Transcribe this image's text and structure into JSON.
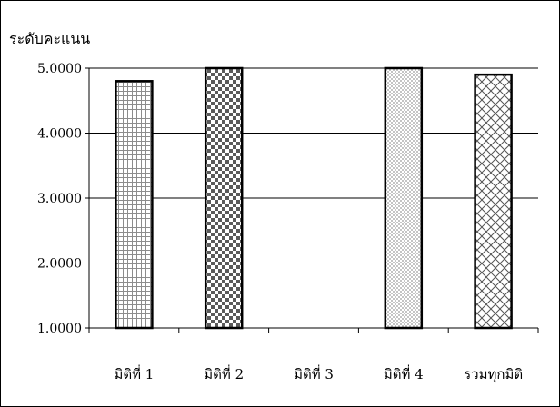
{
  "chart_data": {
    "type": "bar",
    "title": "",
    "ylabel": "ระดับคะแนน",
    "xlabel": "",
    "categories": [
      "มิติที่ 1",
      "มิติที่ 2",
      "มิติที่ 3",
      "มิติที่ 4",
      "รวมทุกมิติ"
    ],
    "values": [
      4.8,
      5.0,
      null,
      5.0,
      4.9
    ],
    "patterns": [
      "grid",
      "checker",
      "none",
      "dots",
      "diagonal-cross"
    ],
    "ylim": [
      1,
      5
    ],
    "yticks": [
      1,
      2,
      3,
      4,
      5
    ],
    "ytick_labels": [
      "1.0000",
      "2.0000",
      "3.0000",
      "4.0000",
      "5.0000"
    ],
    "grid": true,
    "legend": "none",
    "colors": {
      "bar_fill": "#ffffff",
      "bar_stroke": "#000000",
      "grid": "#000000",
      "pattern_grey": "#808080"
    }
  }
}
